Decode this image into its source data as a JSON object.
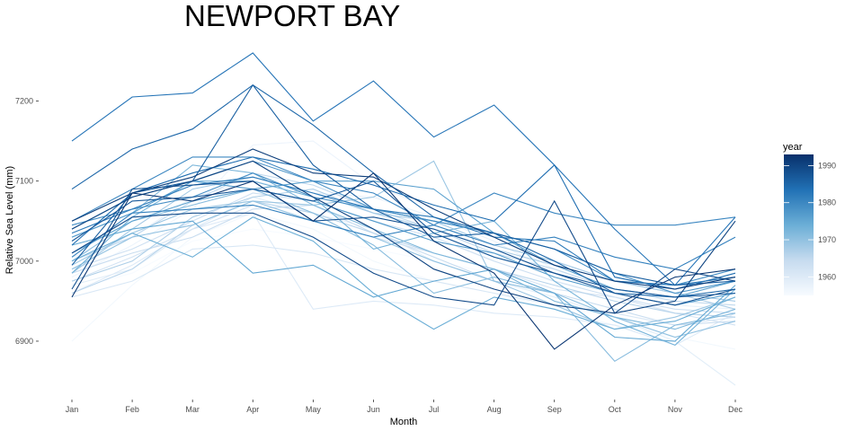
{
  "chart_data": {
    "type": "line",
    "title": "NEWPORT BAY",
    "xlabel": "Month",
    "ylabel": "Relative Sea Level (mm)",
    "categories": [
      "Jan",
      "Feb",
      "Mar",
      "Apr",
      "May",
      "Jun",
      "Jul",
      "Aug",
      "Sep",
      "Oct",
      "Nov",
      "Dec"
    ],
    "ylim": [
      6840,
      7270
    ],
    "yticks": [
      6900,
      7000,
      7100,
      7200
    ],
    "grid": false,
    "legend": {
      "title": "year",
      "type": "colorbar",
      "position": "right",
      "ticks": [
        1960,
        1970,
        1980,
        1990
      ],
      "range": [
        1955,
        1993
      ],
      "color_low": "#f7fbff",
      "color_high": "#08306b"
    },
    "series": [
      {
        "year": 1955,
        "values": [
          6965,
          6985,
          7025,
          7040,
          7030,
          7015,
          7000,
          6985,
          6975,
          6960,
          6950,
          6945
        ]
      },
      {
        "year": 1956,
        "values": [
          6900,
          6970,
          7030,
          7060,
          7040,
          7000,
          6975,
          6960,
          6940,
          6920,
          6905,
          6890
        ]
      },
      {
        "year": 1957,
        "values": [
          6980,
          7020,
          7065,
          7145,
          7150,
          7095,
          7065,
          7030,
          6990,
          6960,
          6935,
          6930
        ]
      },
      {
        "year": 1958,
        "values": [
          7005,
          7030,
          7080,
          7100,
          7085,
          7080,
          7055,
          7025,
          6985,
          6960,
          6945,
          6940
        ]
      },
      {
        "year": 1959,
        "values": [
          6970,
          6990,
          7040,
          7080,
          7060,
          7040,
          7000,
          6975,
          6955,
          6930,
          6900,
          6845
        ]
      },
      {
        "year": 1960,
        "values": [
          6960,
          6995,
          7040,
          7060,
          6940,
          6950,
          6945,
          6935,
          6930,
          6920,
          6895,
          6935
        ]
      },
      {
        "year": 1961,
        "values": [
          6955,
          6975,
          7015,
          7020,
          7010,
          6990,
          6975,
          6960,
          6945,
          6935,
          6920,
          6930
        ]
      },
      {
        "year": 1962,
        "values": [
          6975,
          7005,
          7040,
          7070,
          7050,
          7030,
          7010,
          6990,
          6965,
          6955,
          6935,
          6920
        ]
      },
      {
        "year": 1963,
        "values": [
          6990,
          7015,
          7050,
          7085,
          7075,
          7050,
          7030,
          7000,
          6975,
          6955,
          6940,
          6935
        ]
      },
      {
        "year": 1964,
        "values": [
          6985,
          7010,
          7030,
          7065,
          7070,
          7035,
          7005,
          6975,
          6960,
          6940,
          6920,
          6925
        ]
      },
      {
        "year": 1965,
        "values": [
          7000,
          7030,
          7075,
          7110,
          7095,
          7065,
          7040,
          7010,
          6990,
          6965,
          6950,
          6945
        ]
      },
      {
        "year": 1966,
        "values": [
          6960,
          6990,
          7045,
          7075,
          7060,
          7035,
          7010,
          6990,
          6970,
          6950,
          6935,
          6930
        ]
      },
      {
        "year": 1967,
        "values": [
          6975,
          7000,
          7055,
          7080,
          7090,
          7060,
          7040,
          7015,
          6995,
          6975,
          6960,
          6940
        ]
      },
      {
        "year": 1968,
        "values": [
          6985,
          7040,
          7090,
          7105,
          7085,
          7060,
          7050,
          7020,
          7000,
          6975,
          6960,
          6950
        ]
      },
      {
        "year": 1969,
        "values": [
          6995,
          7035,
          7065,
          7075,
          7070,
          7080,
          7125,
          6975,
          6945,
          6915,
          6930,
          6955
        ]
      },
      {
        "year": 1970,
        "values": [
          6990,
          7030,
          7045,
          7075,
          7050,
          7030,
          7000,
          6975,
          6960,
          6930,
          6905,
          6925
        ]
      },
      {
        "year": 1971,
        "values": [
          7000,
          7050,
          7070,
          7090,
          7060,
          7020,
          6960,
          6980,
          6960,
          6875,
          6920,
          6935
        ]
      },
      {
        "year": 1972,
        "values": [
          7030,
          7060,
          7120,
          7110,
          7070,
          7040,
          7010,
          6990,
          6950,
          6930,
          6915,
          6940
        ]
      },
      {
        "year": 1973,
        "values": [
          6985,
          7055,
          7100,
          7100,
          7080,
          7015,
          7035,
          7050,
          6975,
          6925,
          6895,
          6965
        ]
      },
      {
        "year": 1974,
        "values": [
          7000,
          7035,
          7005,
          7055,
          7025,
          6960,
          6915,
          6955,
          6940,
          6915,
          6925,
          6955
        ]
      },
      {
        "year": 1975,
        "values": [
          7020,
          7040,
          7050,
          6985,
          6995,
          6955,
          6975,
          6990,
          6960,
          6905,
          6900,
          6970
        ]
      },
      {
        "year": 1976,
        "values": [
          7010,
          7050,
          7075,
          7090,
          7100,
          7100,
          7090,
          7035,
          6995,
          6965,
          6955,
          6975
        ]
      },
      {
        "year": 1977,
        "values": [
          7030,
          7060,
          7100,
          7090,
          7075,
          7050,
          7025,
          7010,
          6980,
          6960,
          6945,
          6960
        ]
      },
      {
        "year": 1978,
        "values": [
          7040,
          7080,
          7100,
          7125,
          7100,
          7065,
          7050,
          7035,
          7015,
          6985,
          6960,
          6975
        ]
      },
      {
        "year": 1979,
        "values": [
          7045,
          7065,
          7080,
          7110,
          7080,
          7065,
          7050,
          7035,
          7015,
          6975,
          6970,
          6990
        ]
      },
      {
        "year": 1980,
        "values": [
          7050,
          7090,
          7130,
          7130,
          7100,
          7085,
          7045,
          7085,
          7060,
          7045,
          7045,
          7055
        ]
      },
      {
        "year": 1981,
        "values": [
          7005,
          7060,
          7065,
          7070,
          7050,
          7030,
          7045,
          7020,
          7030,
          7005,
          6990,
          7030
        ]
      },
      {
        "year": 1982,
        "values": [
          7035,
          7065,
          7095,
          7105,
          7085,
          7065,
          7055,
          7030,
          7025,
          6975,
          6970,
          6980
        ]
      },
      {
        "year": 1983,
        "values": [
          7150,
          7205,
          7210,
          7260,
          7175,
          7225,
          7155,
          7195,
          7120,
          7040,
          6970,
          7055
        ]
      },
      {
        "year": 1984,
        "values": [
          7020,
          7085,
          7110,
          7130,
          7115,
          7095,
          7070,
          7050,
          7120,
          6980,
          6965,
          6985
        ]
      },
      {
        "year": 1985,
        "values": [
          7090,
          7140,
          7165,
          7220,
          7170,
          7110,
          7055,
          7035,
          7000,
          6960,
          6955,
          6965
        ]
      },
      {
        "year": 1986,
        "values": [
          6995,
          7085,
          7100,
          7220,
          7120,
          7065,
          7030,
          7035,
          7015,
          6985,
          6970,
          6975
        ]
      },
      {
        "year": 1987,
        "values": [
          7025,
          7075,
          7080,
          7090,
          7075,
          7100,
          7035,
          7005,
          6985,
          6965,
          6955,
          6960
        ]
      },
      {
        "year": 1988,
        "values": [
          6965,
          7090,
          7095,
          7100,
          7050,
          7055,
          7040,
          7015,
          6985,
          6960,
          6945,
          6965
        ]
      },
      {
        "year": 1989,
        "values": [
          7010,
          7055,
          7060,
          7060,
          7030,
          6985,
          6955,
          6945,
          7075,
          6935,
          6990,
          6975
        ]
      },
      {
        "year": 1990,
        "values": [
          7040,
          7080,
          7100,
          7125,
          7080,
          7040,
          6990,
          6965,
          6945,
          6935,
          6950,
          7050
        ]
      },
      {
        "year": 1991,
        "values": [
          7050,
          7085,
          7105,
          7140,
          7110,
          7105,
          7065,
          7030,
          6995,
          6975,
          6965,
          6980
        ]
      },
      {
        "year": 1992,
        "values": [
          6955,
          7085,
          7075,
          7100,
          7050,
          7110,
          7025,
          6985,
          6890,
          6945,
          6980,
          6990
        ]
      }
    ]
  }
}
